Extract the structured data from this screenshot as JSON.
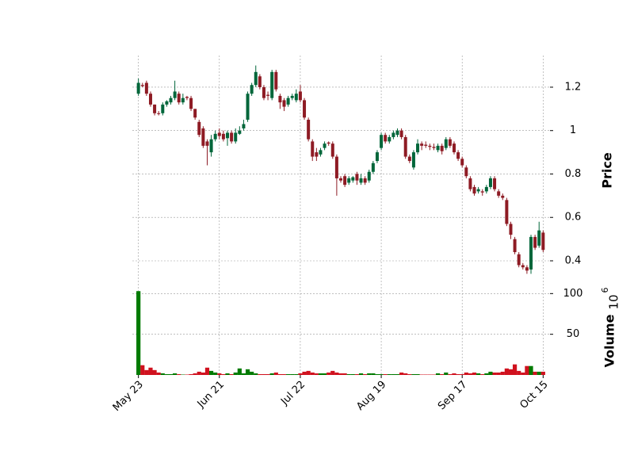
{
  "chart_data": {
    "type": "candlestick",
    "categories": [
      "May 23",
      null,
      null,
      null,
      null,
      null,
      null,
      null,
      null,
      null,
      null,
      null,
      null,
      null,
      null,
      null,
      null,
      null,
      null,
      null,
      "Jun 21",
      null,
      null,
      null,
      null,
      null,
      null,
      null,
      null,
      null,
      null,
      null,
      null,
      null,
      null,
      null,
      null,
      null,
      null,
      null,
      "Jul 22",
      null,
      null,
      null,
      null,
      null,
      null,
      null,
      null,
      null,
      null,
      null,
      null,
      null,
      null,
      null,
      null,
      null,
      null,
      null,
      "Aug 19",
      null,
      null,
      null,
      null,
      null,
      null,
      null,
      null,
      null,
      null,
      null,
      null,
      null,
      null,
      null,
      null,
      null,
      null,
      null,
      "Sep 17",
      null,
      null,
      null,
      null,
      null,
      null,
      null,
      null,
      null,
      null,
      null,
      null,
      null,
      null,
      null,
      null,
      null,
      null,
      null,
      "Oct 15"
    ],
    "open": [
      1.17,
      1.21,
      1.22,
      1.17,
      1.12,
      1.08,
      1.08,
      1.12,
      1.13,
      1.15,
      1.17,
      1.13,
      1.155,
      1.15,
      1.1,
      1.04,
      1.01,
      0.95,
      0.9,
      0.96,
      0.99,
      0.985,
      0.965,
      0.99,
      0.95,
      0.985,
      1.01,
      1.05,
      1.17,
      1.21,
      1.25,
      1.2,
      1.165,
      1.15,
      1.27,
      1.16,
      1.14,
      1.12,
      1.15,
      1.14,
      1.18,
      1.14,
      1.05,
      0.95,
      0.9,
      0.89,
      0.92,
      0.945,
      0.94,
      0.88,
      0.78,
      0.79,
      0.76,
      0.77,
      0.8,
      0.76,
      0.78,
      0.77,
      0.81,
      0.86,
      0.92,
      0.98,
      0.95,
      0.97,
      0.98,
      1.0,
      0.97,
      0.88,
      0.83,
      0.9,
      0.94,
      0.935,
      0.93,
      0.925,
      0.91,
      0.93,
      0.92,
      0.96,
      0.94,
      0.9,
      0.87,
      0.83,
      0.78,
      0.74,
      0.72,
      0.72,
      0.72,
      0.74,
      0.78,
      0.72,
      0.7,
      0.68,
      0.57,
      0.5,
      0.43,
      0.38,
      0.37,
      0.36,
      0.51,
      0.47,
      0.53
    ],
    "high": [
      1.24,
      1.22,
      1.23,
      1.18,
      1.12,
      1.09,
      1.13,
      1.14,
      1.16,
      1.23,
      1.18,
      1.17,
      1.16,
      1.16,
      1.1,
      1.05,
      1.02,
      0.96,
      0.98,
      1.0,
      1.01,
      1.0,
      1.0,
      1.0,
      1.01,
      1.02,
      1.05,
      1.18,
      1.22,
      1.3,
      1.26,
      1.21,
      1.18,
      1.28,
      1.28,
      1.17,
      1.15,
      1.16,
      1.17,
      1.19,
      1.21,
      1.15,
      1.06,
      0.96,
      0.92,
      0.92,
      0.95,
      0.95,
      0.95,
      0.89,
      0.79,
      0.8,
      0.79,
      0.79,
      0.81,
      0.8,
      0.79,
      0.82,
      0.86,
      0.91,
      0.99,
      0.99,
      0.98,
      1.0,
      1.01,
      1.01,
      0.98,
      0.89,
      0.91,
      0.96,
      0.95,
      0.95,
      0.94,
      0.94,
      0.94,
      0.94,
      0.97,
      0.97,
      0.95,
      0.91,
      0.88,
      0.84,
      0.79,
      0.75,
      0.74,
      0.73,
      0.75,
      0.79,
      0.79,
      0.73,
      0.71,
      0.69,
      0.58,
      0.51,
      0.44,
      0.39,
      0.38,
      0.52,
      0.52,
      0.58,
      0.54
    ],
    "low": [
      1.16,
      1.2,
      1.16,
      1.11,
      1.07,
      1.07,
      1.07,
      1.11,
      1.12,
      1.14,
      1.12,
      1.12,
      1.14,
      1.09,
      1.05,
      0.97,
      0.92,
      0.84,
      0.88,
      0.95,
      0.96,
      0.95,
      0.93,
      0.94,
      0.94,
      0.98,
      1.0,
      1.04,
      1.16,
      1.2,
      1.19,
      1.14,
      1.14,
      1.14,
      1.18,
      1.1,
      1.09,
      1.11,
      1.14,
      1.13,
      1.13,
      1.05,
      0.95,
      0.86,
      0.86,
      0.88,
      0.91,
      0.93,
      0.87,
      0.7,
      0.76,
      0.74,
      0.75,
      0.76,
      0.75,
      0.75,
      0.75,
      0.76,
      0.8,
      0.85,
      0.91,
      0.94,
      0.94,
      0.96,
      0.97,
      0.96,
      0.87,
      0.85,
      0.82,
      0.89,
      0.91,
      0.92,
      0.91,
      0.91,
      0.9,
      0.89,
      0.91,
      0.92,
      0.89,
      0.86,
      0.83,
      0.78,
      0.72,
      0.7,
      0.71,
      0.7,
      0.71,
      0.73,
      0.72,
      0.69,
      0.68,
      0.56,
      0.5,
      0.43,
      0.37,
      0.36,
      0.34,
      0.34,
      0.45,
      0.46,
      0.44
    ],
    "close": [
      1.22,
      1.205,
      1.17,
      1.12,
      1.08,
      1.078,
      1.12,
      1.135,
      1.15,
      1.18,
      1.13,
      1.15,
      1.15,
      1.1,
      1.06,
      0.98,
      0.93,
      0.93,
      0.96,
      0.985,
      0.975,
      0.96,
      0.99,
      0.95,
      0.99,
      1.0,
      1.03,
      1.17,
      1.21,
      1.27,
      1.2,
      1.15,
      1.16,
      1.27,
      1.19,
      1.13,
      1.11,
      1.15,
      1.16,
      1.17,
      1.14,
      1.06,
      0.96,
      0.88,
      0.88,
      0.91,
      0.94,
      0.94,
      0.88,
      0.78,
      0.77,
      0.75,
      0.78,
      0.785,
      0.77,
      0.78,
      0.76,
      0.81,
      0.85,
      0.9,
      0.98,
      0.95,
      0.97,
      0.99,
      1.0,
      0.97,
      0.88,
      0.86,
      0.9,
      0.94,
      0.93,
      0.93,
      0.925,
      0.92,
      0.93,
      0.905,
      0.96,
      0.93,
      0.9,
      0.87,
      0.84,
      0.79,
      0.73,
      0.71,
      0.73,
      0.715,
      0.74,
      0.78,
      0.73,
      0.7,
      0.69,
      0.57,
      0.52,
      0.44,
      0.38,
      0.37,
      0.355,
      0.51,
      0.46,
      0.54,
      0.45
    ],
    "volume": [
      103,
      12,
      6,
      9,
      6,
      3,
      2,
      1,
      1,
      2,
      1,
      0.5,
      0.5,
      1,
      2,
      4,
      3,
      9,
      5,
      3,
      2,
      1,
      2,
      1,
      3,
      8,
      2,
      7,
      4,
      2,
      1,
      1,
      1,
      2,
      3,
      1,
      1,
      1,
      1,
      1,
      2,
      4,
      5,
      3,
      2,
      2,
      2,
      3,
      5,
      3,
      2,
      2,
      1,
      1,
      1,
      2,
      1,
      2,
      2,
      1,
      1,
      1,
      1,
      1,
      1,
      3,
      2,
      1,
      1,
      1,
      0.5,
      0.5,
      0.5,
      0.5,
      2,
      1,
      3,
      1,
      2,
      1,
      1,
      3,
      2,
      3,
      2,
      1,
      2,
      4,
      3,
      3,
      4,
      8,
      7,
      13,
      5,
      3,
      11,
      11,
      4,
      4,
      4
    ],
    "up_color": "#00663a",
    "down_color": "#8e1b24",
    "volume_up_color": "#007a00",
    "volume_down_color": "#d0111e",
    "ylim": [
      0.305,
      1.346
    ],
    "yticks": [
      0.4,
      0.6,
      0.8,
      1.0,
      1.2
    ],
    "y_label": "Price",
    "volume_ylim": [
      0,
      112
    ],
    "volume_yticks": [
      50,
      100
    ],
    "volume_label": "Volume",
    "volume_offset": {
      "base": "10",
      "exponent": "6"
    },
    "xlim": [
      -1.5,
      101.5
    ],
    "grid": true
  }
}
